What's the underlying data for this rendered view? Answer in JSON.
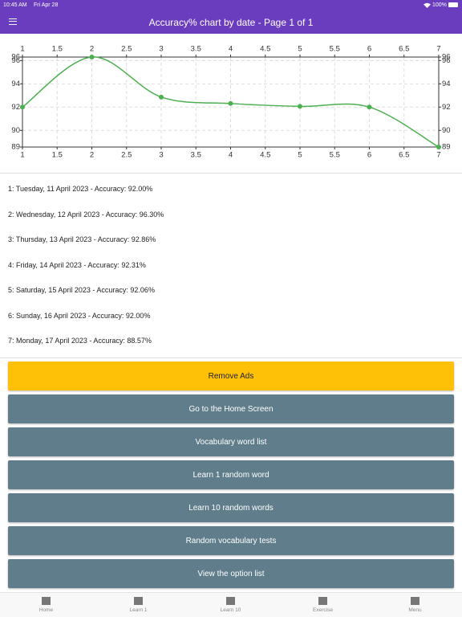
{
  "status_bar": {
    "time": "10:45 AM",
    "date": "Fri Apr 28",
    "battery": "100%"
  },
  "header": {
    "title": "Accuracy% chart by date - Page 1 of 1"
  },
  "chart_data": {
    "type": "line",
    "x": [
      1,
      2,
      3,
      4,
      5,
      6,
      7
    ],
    "series": [
      {
        "color": "#4caf50",
        "values": [
          92.0,
          96.3,
          92.86,
          92.31,
          92.06,
          92.0,
          88.57
        ]
      }
    ],
    "xlim": [
      1,
      7
    ],
    "xticks": [
      1,
      1.5,
      2,
      2.5,
      3,
      3.5,
      4,
      4.5,
      5,
      5.5,
      6,
      6.5,
      7
    ],
    "ylim": [
      88.57,
      96.3
    ],
    "yticks": [
      {
        "value": 88.57,
        "label": "89"
      },
      90,
      92,
      94,
      96,
      {
        "value": 96.3,
        "label": "96"
      }
    ],
    "grid": true
  },
  "entries": [
    "1: Tuesday, 11 April 2023 - Accuracy: 92.00%",
    "2: Wednesday, 12 April 2023 - Accuracy: 96.30%",
    "3: Thursday, 13 April 2023 - Accuracy: 92.86%",
    "4: Friday, 14 April 2023 - Accuracy: 92.31%",
    "5: Saturday, 15 April 2023 - Accuracy: 92.06%",
    "6: Sunday, 16 April 2023 - Accuracy: 92.00%",
    "7: Monday, 17 April 2023 - Accuracy: 88.57%"
  ],
  "buttons": [
    "Remove Ads",
    "Go to the Home Screen",
    "Vocabulary word list",
    "Learn 1 random word",
    "Learn 10 random words",
    "Random vocabulary tests",
    "View the option list"
  ],
  "tabs": [
    "Home",
    "Learn 1",
    "Learn 10",
    "Exercise",
    "Menu"
  ]
}
